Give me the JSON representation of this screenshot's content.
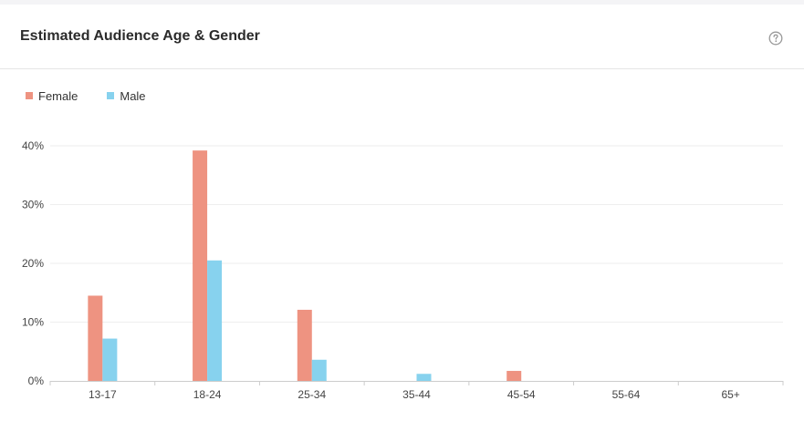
{
  "header": {
    "title": "Estimated Audience Age & Gender",
    "help_icon": "question-circle-icon"
  },
  "colors": {
    "female": "#ee9381",
    "male": "#87d2ee",
    "grid": "#eeeeee",
    "axis": "#cccccc"
  },
  "chart_data": {
    "type": "bar",
    "title": "Estimated Audience Age & Gender",
    "xlabel": "",
    "ylabel": "",
    "categories": [
      "13-17",
      "18-24",
      "25-34",
      "35-44",
      "45-54",
      "55-64",
      "65+"
    ],
    "series": [
      {
        "name": "Female",
        "values": [
          14.5,
          39.2,
          12.1,
          0,
          1.7,
          0,
          0
        ]
      },
      {
        "name": "Male",
        "values": [
          7.2,
          20.5,
          3.6,
          1.2,
          0,
          0,
          0
        ]
      }
    ],
    "ylim": [
      0,
      40
    ],
    "yticks": [
      0,
      10,
      20,
      30,
      40
    ],
    "ytick_labels": [
      "0%",
      "10%",
      "20%",
      "30%",
      "40%"
    ],
    "grid": true,
    "legend": "top-left"
  }
}
